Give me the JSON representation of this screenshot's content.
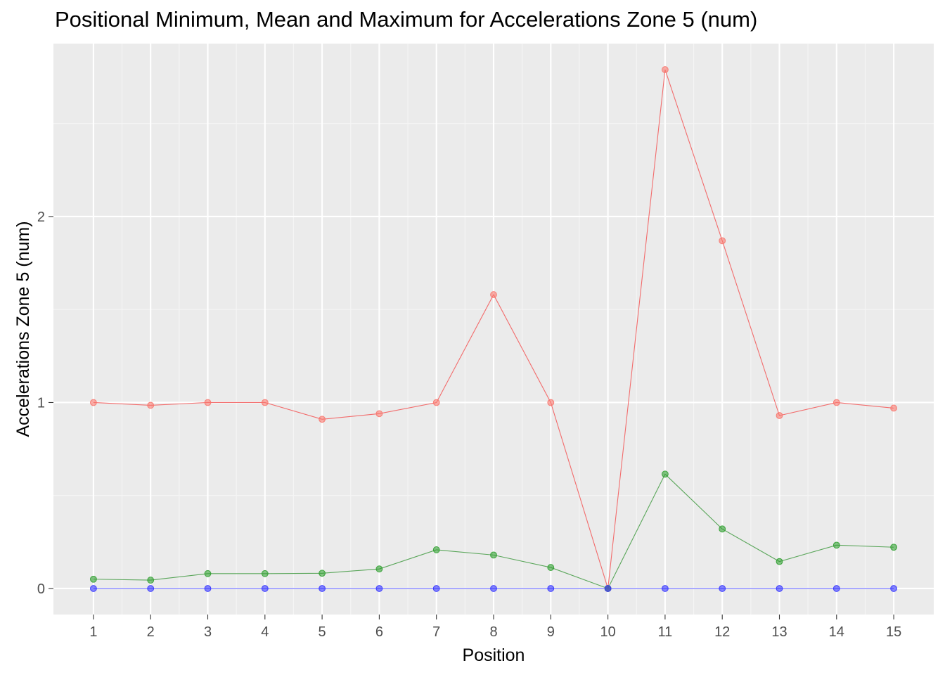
{
  "chart_data": {
    "type": "line",
    "title": "Positional Minimum, Mean and Maximum for Accelerations Zone 5 (num)",
    "xlabel": "Position",
    "ylabel": "Accelerations Zone 5 (num)",
    "x": [
      1,
      2,
      3,
      4,
      5,
      6,
      7,
      8,
      9,
      10,
      11,
      12,
      13,
      14,
      15
    ],
    "x_tick_labels": [
      "1",
      "2",
      "3",
      "4",
      "5",
      "6",
      "7",
      "8",
      "9",
      "10",
      "11",
      "12",
      "13",
      "14",
      "15"
    ],
    "y_ticks": [
      0,
      1,
      2
    ],
    "y_tick_labels": [
      "0",
      "1",
      "2"
    ],
    "xlim": [
      0.3,
      15.7
    ],
    "ylim": [
      -0.14,
      2.93
    ],
    "grid": true,
    "legend": "none",
    "series": [
      {
        "color": "#f8766d",
        "line_color": "#f35e5e",
        "values": [
          1.0,
          0.985,
          1.0,
          1.0,
          0.91,
          0.94,
          1.0,
          1.58,
          1.0,
          0.0,
          2.79,
          1.87,
          0.93,
          1.0,
          0.97
        ]
      },
      {
        "color": "#2e9e2e",
        "line_color": "#4a9e4a",
        "values": [
          0.05,
          0.045,
          0.08,
          0.08,
          0.082,
          0.105,
          0.208,
          0.18,
          0.113,
          0.0,
          0.615,
          0.32,
          0.145,
          0.233,
          0.222
        ]
      },
      {
        "color": "#3333ff",
        "line_color": "#5555ff",
        "values": [
          0,
          0,
          0,
          0,
          0,
          0,
          0,
          0,
          0,
          0,
          0,
          0,
          0,
          0,
          0
        ]
      }
    ]
  }
}
